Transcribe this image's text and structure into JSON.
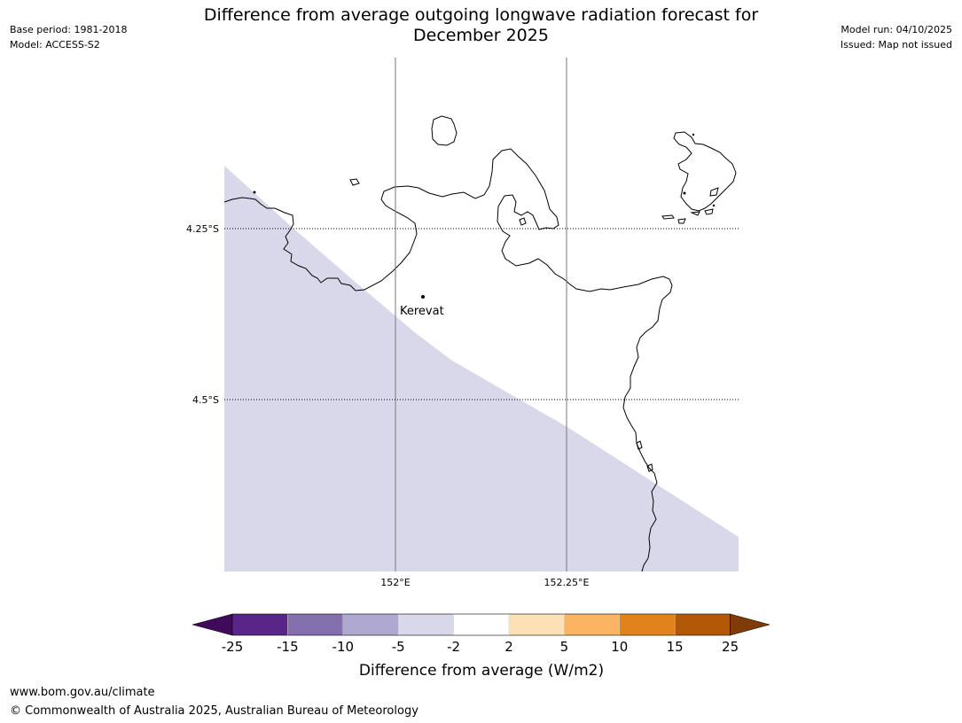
{
  "header": {
    "title_line1": "Difference from average outgoing longwave radiation forecast for",
    "title_line2": "December 2025",
    "base_period": "Base period: 1981-2018",
    "model": "Model: ACCESS-S2",
    "model_run": "Model run: 04/10/2025",
    "issued": "Issued: Map not issued"
  },
  "map": {
    "lat_labels": [
      "4.25°S",
      "4.5°S"
    ],
    "lon_labels": [
      "152°E",
      "152.25°E"
    ],
    "place": "Kerevat",
    "shading_category": "-5 to -2",
    "shading_color": "#d8d8ea"
  },
  "colorbar": {
    "title": "Difference from average (W/m2)",
    "ticks": [
      "-25",
      "-15",
      "-10",
      "-5",
      "-2",
      "2",
      "5",
      "10",
      "15",
      "25"
    ],
    "colors": [
      "#3f0a5a",
      "#5a2589",
      "#8470ae",
      "#afa8d1",
      "#d8d8ea",
      "#ffffff",
      "#fde0b5",
      "#fbb562",
      "#e1821a",
      "#b35806",
      "#7f3b08"
    ]
  },
  "footer": {
    "url": "www.bom.gov.au/climate",
    "copyright": "© Commonwealth of Australia 2025, Australian Bureau of Meteorology"
  }
}
